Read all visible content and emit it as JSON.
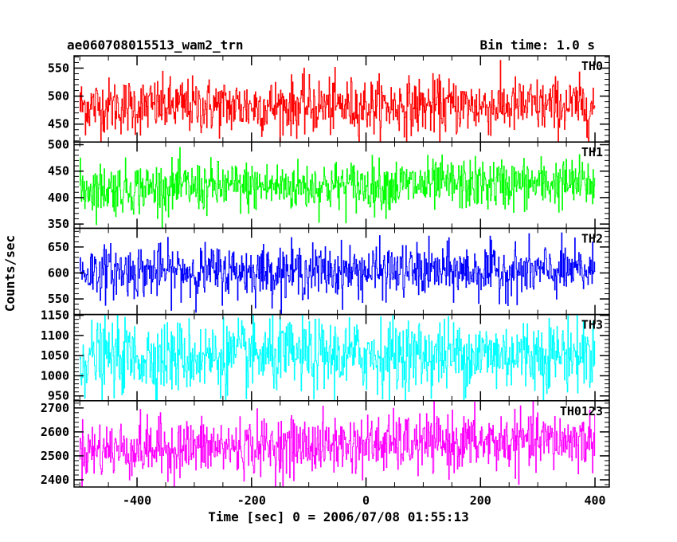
{
  "title_left": "ae060708015513_wam2_trn",
  "title_right": "Bin time: 1.0 s",
  "chart_data": {
    "type": "line",
    "title": "ae060708015513_wam2_trn",
    "subtitle": "Bin time: 1.0 s",
    "xlabel": "Time [sec] 0 = 2006/07/08 01:55:13",
    "ylabel": "Counts/sec",
    "xlim": [
      -510,
      425
    ],
    "x_range": [
      -500,
      400
    ],
    "xticks": [
      -400,
      -200,
      0,
      200,
      400
    ],
    "grid": false,
    "legend": "none",
    "series": [
      {
        "name": "TH0",
        "color": "#ff0000",
        "mean": 482,
        "sigma": 25,
        "trend": 0,
        "ylim": [
          418,
          572
        ],
        "yticks": [
          450,
          500,
          550
        ]
      },
      {
        "name": "TH1",
        "color": "#00ff00",
        "mean": 422,
        "sigma": 24,
        "trend": 10,
        "ylim": [
          342,
          505
        ],
        "yticks": [
          350,
          400,
          450,
          500
        ]
      },
      {
        "name": "TH2",
        "color": "#0000ff",
        "mean": 603,
        "sigma": 25,
        "trend": 0,
        "ylim": [
          520,
          686
        ],
        "yticks": [
          550,
          600,
          650
        ]
      },
      {
        "name": "TH3",
        "color": "#00ffff",
        "mean": 1050,
        "sigma": 45,
        "trend": 10,
        "ylim": [
          938,
          1152
        ],
        "yticks": [
          950,
          1000,
          1050,
          1100,
          1150
        ]
      },
      {
        "name": "TH0123",
        "color": "#ff00ff",
        "mean": 2545,
        "sigma": 60,
        "trend": 40,
        "ylim": [
          2370,
          2730
        ],
        "yticks": [
          2400,
          2500,
          2600,
          2700
        ]
      }
    ]
  }
}
